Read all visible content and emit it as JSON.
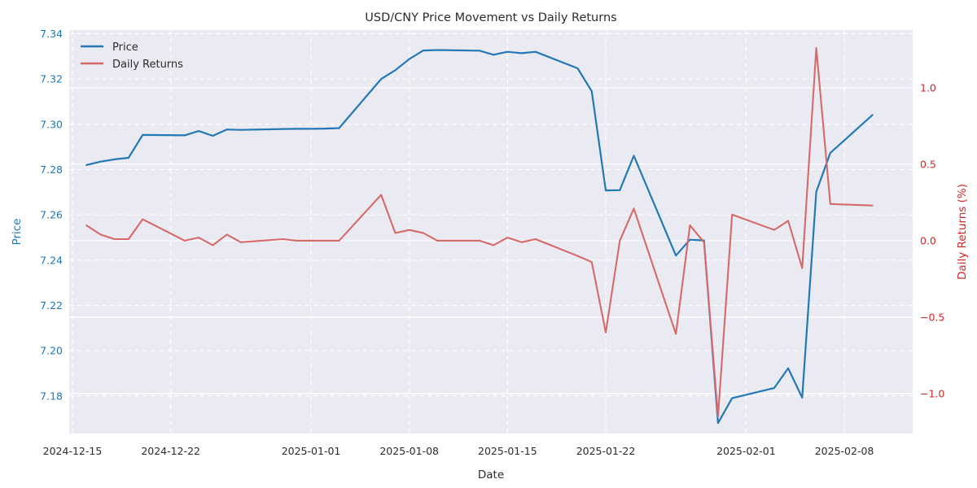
{
  "title": "USD/CNY Price Movement vs Daily Returns",
  "xlabel": "Date",
  "ylabel_left": "Price",
  "ylabel_right": "Daily Returns (%)",
  "legend": {
    "price_label": "Price",
    "returns_label": "Daily Returns"
  },
  "colors": {
    "price_line": "#2478b4",
    "returns_line": "#d66a6a",
    "left_axis_text": "#1f77b4",
    "right_axis_text": "#d62728",
    "plot_bg": "#eaeaf2",
    "grid": "#ffffff",
    "text": "#2b2b2b"
  },
  "chart_data": {
    "type": "line",
    "title": "USD/CNY Price Movement vs Daily Returns",
    "xlabel": "Date",
    "grid": "on",
    "legend_position": "upper left",
    "x": [
      "2024-12-16",
      "2024-12-17",
      "2024-12-18",
      "2024-12-19",
      "2024-12-20",
      "2024-12-23",
      "2024-12-24",
      "2024-12-25",
      "2024-12-26",
      "2024-12-27",
      "2024-12-30",
      "2024-12-31",
      "2025-01-01",
      "2025-01-02",
      "2025-01-03",
      "2025-01-06",
      "2025-01-07",
      "2025-01-08",
      "2025-01-09",
      "2025-01-10",
      "2025-01-13",
      "2025-01-14",
      "2025-01-15",
      "2025-01-16",
      "2025-01-17",
      "2025-01-20",
      "2025-01-21",
      "2025-01-22",
      "2025-01-23",
      "2025-01-24",
      "2025-01-27",
      "2025-01-28",
      "2025-01-29",
      "2025-01-30",
      "2025-01-31",
      "2025-02-03",
      "2025-02-04",
      "2025-02-05",
      "2025-02-06",
      "2025-02-07",
      "2025-02-10"
    ],
    "series": [
      {
        "name": "Price",
        "axis": "left",
        "values": [
          7.282,
          7.2835,
          7.2845,
          7.2852,
          7.2953,
          7.2951,
          7.297,
          7.2949,
          7.2977,
          7.2975,
          7.2979,
          7.298,
          7.298,
          7.2981,
          7.2983,
          7.32,
          7.3239,
          7.3288,
          7.3326,
          7.3328,
          7.3325,
          7.3307,
          7.332,
          7.3314,
          7.332,
          7.3247,
          7.3146,
          7.2708,
          7.2709,
          7.2861,
          7.242,
          7.249,
          7.2487,
          7.168,
          7.179,
          7.1835,
          7.1922,
          7.1792,
          7.2702,
          7.2873,
          7.3041
        ]
      },
      {
        "name": "Daily Returns",
        "axis": "right",
        "values": [
          0.1,
          0.04,
          0.01,
          0.01,
          0.14,
          0.0,
          0.02,
          -0.03,
          0.04,
          -0.01,
          0.01,
          0.0,
          0.0,
          0.0,
          0.0,
          0.3,
          0.05,
          0.07,
          0.05,
          0.0,
          0.0,
          -0.03,
          0.02,
          -0.01,
          0.01,
          -0.1,
          -0.14,
          -0.6,
          0.0,
          0.21,
          -0.61,
          0.1,
          -0.01,
          -1.15,
          0.17,
          0.07,
          0.13,
          -0.18,
          1.26,
          0.24,
          0.23
        ]
      }
    ],
    "x_ticks": [
      "2024-12-15",
      "2024-12-22",
      "2025-01-01",
      "2025-01-08",
      "2025-01-15",
      "2025-01-22",
      "2025-02-01",
      "2025-02-08"
    ],
    "left_axis": {
      "label": "Price",
      "ticks": [
        7.34,
        7.32,
        7.3,
        7.28,
        7.26,
        7.24,
        7.22,
        7.2,
        7.18
      ],
      "range": [
        7.1634,
        7.3416
      ]
    },
    "right_axis": {
      "label": "Daily Returns (%)",
      "ticks": [
        1.0,
        0.5,
        0.0,
        -0.5,
        -1.0
      ],
      "range": [
        -1.261,
        1.377
      ]
    },
    "x_range_days_from_2024_12_15": [
      -0.232,
      59.87
    ]
  }
}
